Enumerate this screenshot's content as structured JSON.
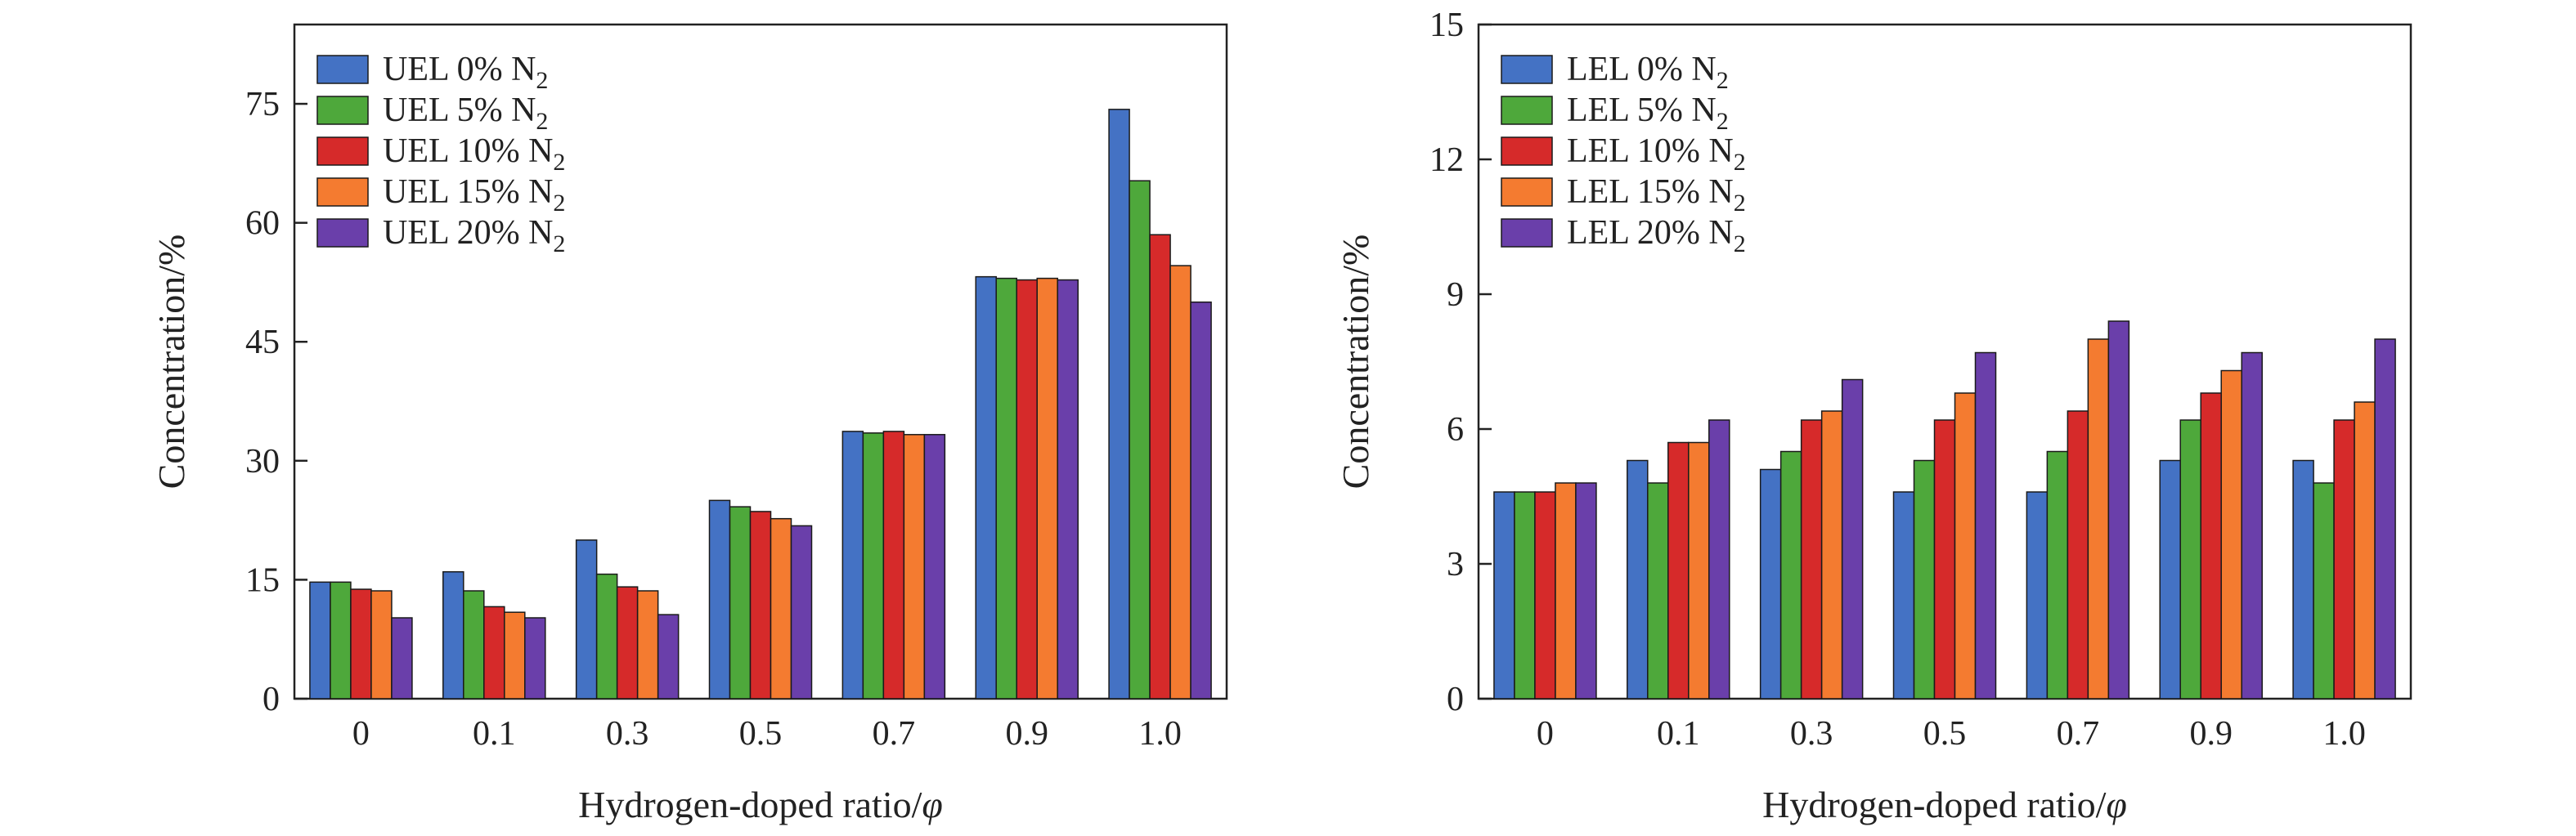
{
  "chart_data": [
    {
      "type": "bar",
      "categories": [
        "0",
        "0.1",
        "0.3",
        "0.5",
        "0.7",
        "0.9",
        "1.0"
      ],
      "xlabel": "Hydrogen-doped ratio/",
      "xlabel_symbol": "φ",
      "ylabel": "Concentration/%",
      "ylim": [
        0,
        85
      ],
      "yticks": [
        0,
        15,
        30,
        45,
        60,
        75
      ],
      "legend_position": "top-left",
      "series": [
        {
          "name": "UEL 0% N",
          "sub": "2",
          "color": "#4472C4",
          "values": [
            14.7,
            16.0,
            20.0,
            25.0,
            33.7,
            53.2,
            74.3
          ]
        },
        {
          "name": "UEL 5% N",
          "sub": "2",
          "color": "#4EA83B",
          "values": [
            14.7,
            13.6,
            15.7,
            24.2,
            33.5,
            53.0,
            65.3
          ]
        },
        {
          "name": "UEL 10% N",
          "sub": "2",
          "color": "#D62A2A",
          "values": [
            13.8,
            11.6,
            14.1,
            23.6,
            33.7,
            52.8,
            58.5
          ]
        },
        {
          "name": "UEL 15% N",
          "sub": "2",
          "color": "#F47B30",
          "values": [
            13.6,
            10.9,
            13.6,
            22.7,
            33.3,
            53.0,
            54.6
          ]
        },
        {
          "name": "UEL 20% N",
          "sub": "2",
          "color": "#6A3FAA",
          "values": [
            10.2,
            10.2,
            10.6,
            21.8,
            33.3,
            52.8,
            50.0
          ]
        }
      ]
    },
    {
      "type": "bar",
      "categories": [
        "0",
        "0.1",
        "0.3",
        "0.5",
        "0.7",
        "0.9",
        "1.0"
      ],
      "xlabel": "Hydrogen-doped ratio/",
      "xlabel_symbol": "φ",
      "ylabel": "Concentration/%",
      "ylim": [
        0,
        15
      ],
      "yticks": [
        0,
        3,
        6,
        9,
        12,
        15
      ],
      "legend_position": "top-left",
      "series": [
        {
          "name": "LEL 0% N",
          "sub": "2",
          "color": "#4472C4",
          "values": [
            4.6,
            5.3,
            5.1,
            4.6,
            4.6,
            5.3,
            5.3
          ]
        },
        {
          "name": "LEL 5% N",
          "sub": "2",
          "color": "#4EA83B",
          "values": [
            4.6,
            4.8,
            5.5,
            5.3,
            5.5,
            6.2,
            4.8
          ]
        },
        {
          "name": "LEL 10% N",
          "sub": "2",
          "color": "#D62A2A",
          "values": [
            4.6,
            5.7,
            6.2,
            6.2,
            6.4,
            6.8,
            6.2
          ]
        },
        {
          "name": "LEL 15% N",
          "sub": "2",
          "color": "#F47B30",
          "values": [
            4.8,
            5.7,
            6.4,
            6.8,
            8.0,
            7.3,
            6.6
          ]
        },
        {
          "name": "LEL 20% N",
          "sub": "2",
          "color": "#6A3FAA",
          "values": [
            4.8,
            6.2,
            7.1,
            7.7,
            8.4,
            7.7,
            8.0
          ]
        }
      ]
    }
  ]
}
